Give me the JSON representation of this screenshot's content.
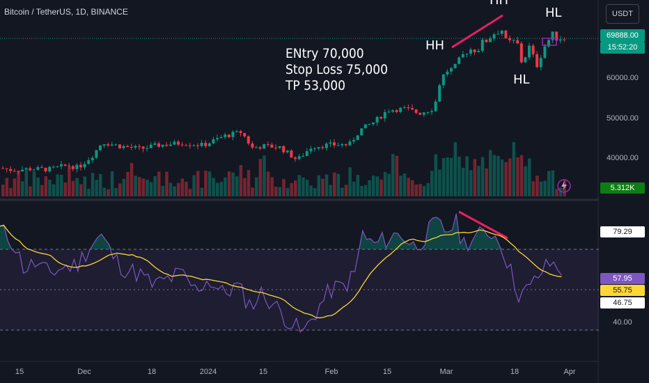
{
  "header": {
    "symbol_title": "Bitcoin / TetherUS, 1D, BINANCE",
    "currency": "USDT"
  },
  "annotations": {
    "note_lines": [
      "ENtry 70,000",
      "Stop Loss 75,000",
      "TP 53,000"
    ],
    "patterns": [
      "HH",
      "HH",
      "HL",
      "HL"
    ]
  },
  "price_axis": {
    "labels": [
      "60000.00",
      "50000.00",
      "40000.00"
    ],
    "current_price": "69888.00",
    "countdown": "15:52:20",
    "volume": "5.312K"
  },
  "rsi_axis": {
    "top_value": "79.29",
    "rsi_value": "57.95",
    "ma_value": "55.75",
    "mid_value": "46.75",
    "low_value": "40.00"
  },
  "time_axis": {
    "labels": [
      "15",
      "Dec",
      "18",
      "2024",
      "15",
      "Feb",
      "15",
      "Mar",
      "18",
      "Apr"
    ]
  },
  "colors": {
    "background": "#131722",
    "up": "#089981",
    "down": "#f23645",
    "rsi_line": "#7e57c2",
    "rsi_ma": "#fdd835",
    "trend_line": "#e91e63",
    "price_badge": "#089981"
  },
  "icons": {
    "lightning": "lightning-icon"
  }
}
